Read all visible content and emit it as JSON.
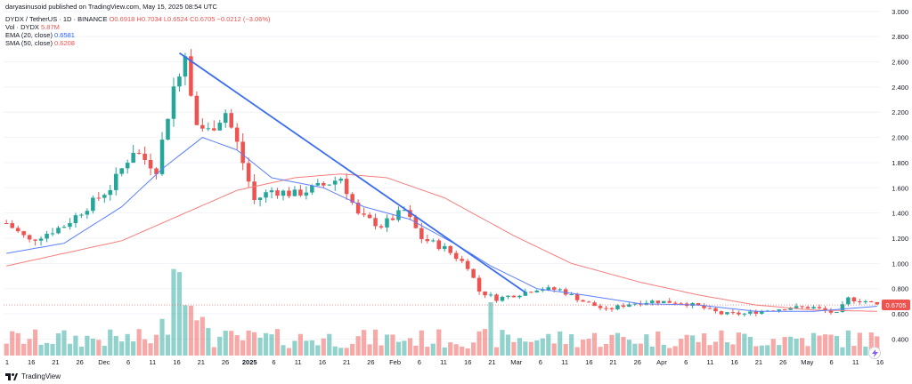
{
  "header": {
    "published": "daryasinusoid published on TradingView.com, May 15, 2025 08:54 UTC",
    "symbol": "DYDX / TetherUS · 1D · BINANCE",
    "ohlc": "O0.6918 H0.7034 L0.6524 C0.6705 −0.0212 (−3.06%)",
    "vol_label": "Vol · DYDX",
    "vol_value": "5.87M",
    "ema_label": "EMA (20, close)",
    "ema_value": "0.6581",
    "sma_label": "SMA (50, close)",
    "sma_value": "0.6208"
  },
  "footer": {
    "brand": "TradingView"
  },
  "colors": {
    "up": "#26a69a",
    "down": "#ef5350",
    "ema": "#5b7fff",
    "sma": "#f57f7f",
    "trendline": "#3a6df0",
    "last_price_bg": "#ef5350",
    "axis_text": "#131722",
    "grid": "#f0f3fa"
  },
  "icons": {
    "alert": "lightning-icon",
    "logo": "tradingview-logo-icon"
  },
  "chart_data": {
    "type": "candlestick",
    "yaxis_ticks": [
      "0.400",
      "0.600",
      "0.800",
      "1.000",
      "1.200",
      "1.400",
      "1.600",
      "1.800",
      "2.000",
      "2.200",
      "2.400",
      "2.600",
      "2.800",
      "3.000"
    ],
    "xaxis_ticks": [
      "1",
      "16",
      "21",
      "26",
      "Dec",
      "6",
      "11",
      "16",
      "21",
      "26",
      "2025",
      "6",
      "11",
      "16",
      "21",
      "26",
      "Feb",
      "6",
      "11",
      "16",
      "21",
      "Mar",
      "6",
      "11",
      "16",
      "21",
      "26",
      "Apr",
      "6",
      "11",
      "16",
      "21",
      "26",
      "May",
      "6",
      "11",
      "16"
    ],
    "ylim": [
      0.29,
      3.02
    ],
    "last_price": "0.6705",
    "segments": [
      [
        0,
        1.32
      ],
      [
        4,
        1.18
      ],
      [
        10,
        1.3
      ],
      [
        14,
        1.45
      ],
      [
        18,
        1.6
      ],
      [
        22,
        1.9
      ],
      [
        26,
        1.75
      ],
      [
        29,
        2.4
      ],
      [
        31,
        2.68
      ],
      [
        33,
        2.1
      ],
      [
        35,
        2.05
      ],
      [
        38,
        2.2
      ],
      [
        40,
        1.95
      ],
      [
        43,
        1.5
      ],
      [
        46,
        1.58
      ],
      [
        50,
        1.55
      ],
      [
        55,
        1.62
      ],
      [
        58,
        1.68
      ],
      [
        61,
        1.38
      ],
      [
        65,
        1.3
      ],
      [
        69,
        1.42
      ],
      [
        72,
        1.2
      ],
      [
        76,
        1.12
      ],
      [
        80,
        0.98
      ],
      [
        82,
        0.78
      ],
      [
        85,
        0.72
      ],
      [
        89,
        0.76
      ],
      [
        92,
        0.8
      ],
      [
        96,
        0.79
      ],
      [
        100,
        0.7
      ],
      [
        104,
        0.63
      ],
      [
        108,
        0.68
      ],
      [
        112,
        0.7
      ],
      [
        117,
        0.69
      ],
      [
        120,
        0.66
      ],
      [
        124,
        0.6
      ],
      [
        128,
        0.6
      ],
      [
        132,
        0.63
      ],
      [
        136,
        0.65
      ],
      [
        140,
        0.65
      ],
      [
        144,
        0.6
      ],
      [
        146,
        0.72
      ],
      [
        149,
        0.7
      ],
      [
        151,
        0.67
      ]
    ],
    "ema_20": [
      [
        0,
        1.08
      ],
      [
        10,
        1.16
      ],
      [
        20,
        1.45
      ],
      [
        27,
        1.75
      ],
      [
        34,
        2.0
      ],
      [
        40,
        1.9
      ],
      [
        46,
        1.68
      ],
      [
        55,
        1.6
      ],
      [
        62,
        1.45
      ],
      [
        70,
        1.35
      ],
      [
        78,
        1.15
      ],
      [
        84,
        0.98
      ],
      [
        92,
        0.8
      ],
      [
        100,
        0.75
      ],
      [
        110,
        0.68
      ],
      [
        120,
        0.67
      ],
      [
        130,
        0.62
      ],
      [
        140,
        0.62
      ],
      [
        151,
        0.66
      ]
    ],
    "sma_50": [
      [
        0,
        0.98
      ],
      [
        20,
        1.18
      ],
      [
        30,
        1.38
      ],
      [
        40,
        1.58
      ],
      [
        50,
        1.68
      ],
      [
        58,
        1.71
      ],
      [
        66,
        1.68
      ],
      [
        76,
        1.52
      ],
      [
        88,
        1.22
      ],
      [
        98,
        1.0
      ],
      [
        110,
        0.85
      ],
      [
        120,
        0.75
      ],
      [
        130,
        0.67
      ],
      [
        140,
        0.63
      ],
      [
        151,
        0.62
      ]
    ],
    "trendline": {
      "start": [
        30,
        2.67
      ],
      "end": [
        90,
        0.77
      ]
    },
    "volume_note": "relative volume bars, tallest near early Dec and early Feb"
  }
}
